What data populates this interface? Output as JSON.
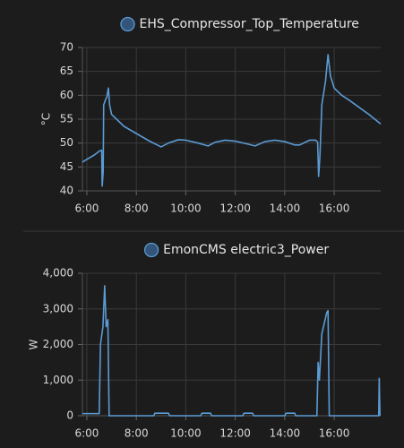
{
  "chart_data": [
    {
      "type": "line",
      "ylabel": "°C",
      "x": [
        5.82,
        6.0,
        6.3,
        6.5,
        6.6,
        6.62,
        6.66,
        6.68,
        6.75,
        6.8,
        6.87,
        6.92,
        7.0,
        7.5,
        8.0,
        8.5,
        9.0,
        9.3,
        9.7,
        10.0,
        10.5,
        10.9,
        11.2,
        11.6,
        12.0,
        12.5,
        12.8,
        13.2,
        13.6,
        14.0,
        14.4,
        14.6,
        15.0,
        15.25,
        15.33,
        15.37,
        15.42,
        15.5,
        15.65,
        15.75,
        15.85,
        16.0,
        16.3,
        16.6,
        17.0,
        17.4,
        17.88
      ],
      "series": [
        {
          "name": "EHS_Compressor_Top_Temperature",
          "color": "#5b9bd5",
          "values": [
            46,
            46.6,
            47.5,
            48.3,
            48.5,
            41,
            44,
            58,
            59,
            59.5,
            61.5,
            58,
            56,
            53.5,
            52,
            50.5,
            49.2,
            50,
            50.7,
            50.6,
            50,
            49.4,
            50.2,
            50.6,
            50.4,
            49.8,
            49.4,
            50.3,
            50.6,
            50.3,
            49.6,
            49.6,
            50.6,
            50.6,
            50.2,
            43,
            47,
            58,
            63,
            68.5,
            64,
            61.5,
            60,
            59,
            57.5,
            56,
            54
          ]
        }
      ],
      "xlim": [
        5.82,
        17.88
      ],
      "ylim": [
        40,
        70
      ],
      "xticks": [
        {
          "value": 6,
          "label": "6:00"
        },
        {
          "value": 8,
          "label": "8:00"
        },
        {
          "value": 10,
          "label": "10:00"
        },
        {
          "value": 12,
          "label": "12:00"
        },
        {
          "value": 14,
          "label": "14:00"
        },
        {
          "value": 16,
          "label": "16:00"
        }
      ],
      "yticks": [
        40,
        45,
        50,
        55,
        60,
        65,
        70
      ],
      "grid": true
    },
    {
      "type": "line",
      "ylabel": "W",
      "x": [
        5.82,
        6.4,
        6.5,
        6.55,
        6.65,
        6.72,
        6.78,
        6.85,
        6.9,
        8.7,
        8.75,
        9.3,
        9.35,
        10.6,
        10.65,
        11.0,
        11.05,
        12.3,
        12.35,
        12.7,
        12.75,
        14.0,
        14.05,
        14.4,
        14.45,
        15.3,
        15.35,
        15.4,
        15.5,
        15.7,
        15.75,
        15.8,
        17.8,
        17.82,
        17.85
      ],
      "series": [
        {
          "name": "EmonCMS electric3_Power",
          "color": "#5b9bd5",
          "values": [
            60,
            60,
            60,
            2000,
            2500,
            3650,
            2500,
            2700,
            0,
            0,
            70,
            70,
            0,
            0,
            70,
            70,
            0,
            0,
            70,
            70,
            0,
            0,
            70,
            70,
            0,
            0,
            1500,
            1000,
            2300,
            2900,
            2950,
            0,
            0,
            1050,
            0
          ]
        }
      ],
      "xlim": [
        5.82,
        17.88
      ],
      "ylim": [
        0,
        4000
      ],
      "xticks": [
        {
          "value": 6,
          "label": "6:00"
        },
        {
          "value": 8,
          "label": "8:00"
        },
        {
          "value": 10,
          "label": "10:00"
        },
        {
          "value": 12,
          "label": "12:00"
        },
        {
          "value": 14,
          "label": "14:00"
        },
        {
          "value": 16,
          "label": "16:00"
        }
      ],
      "yticks": [
        0,
        {
          "value": 1000,
          "label": "1,000"
        },
        {
          "value": 2000,
          "label": "2,000"
        },
        {
          "value": 3000,
          "label": "3,000"
        },
        {
          "value": 4000,
          "label": "4,000"
        }
      ],
      "grid": true
    }
  ]
}
